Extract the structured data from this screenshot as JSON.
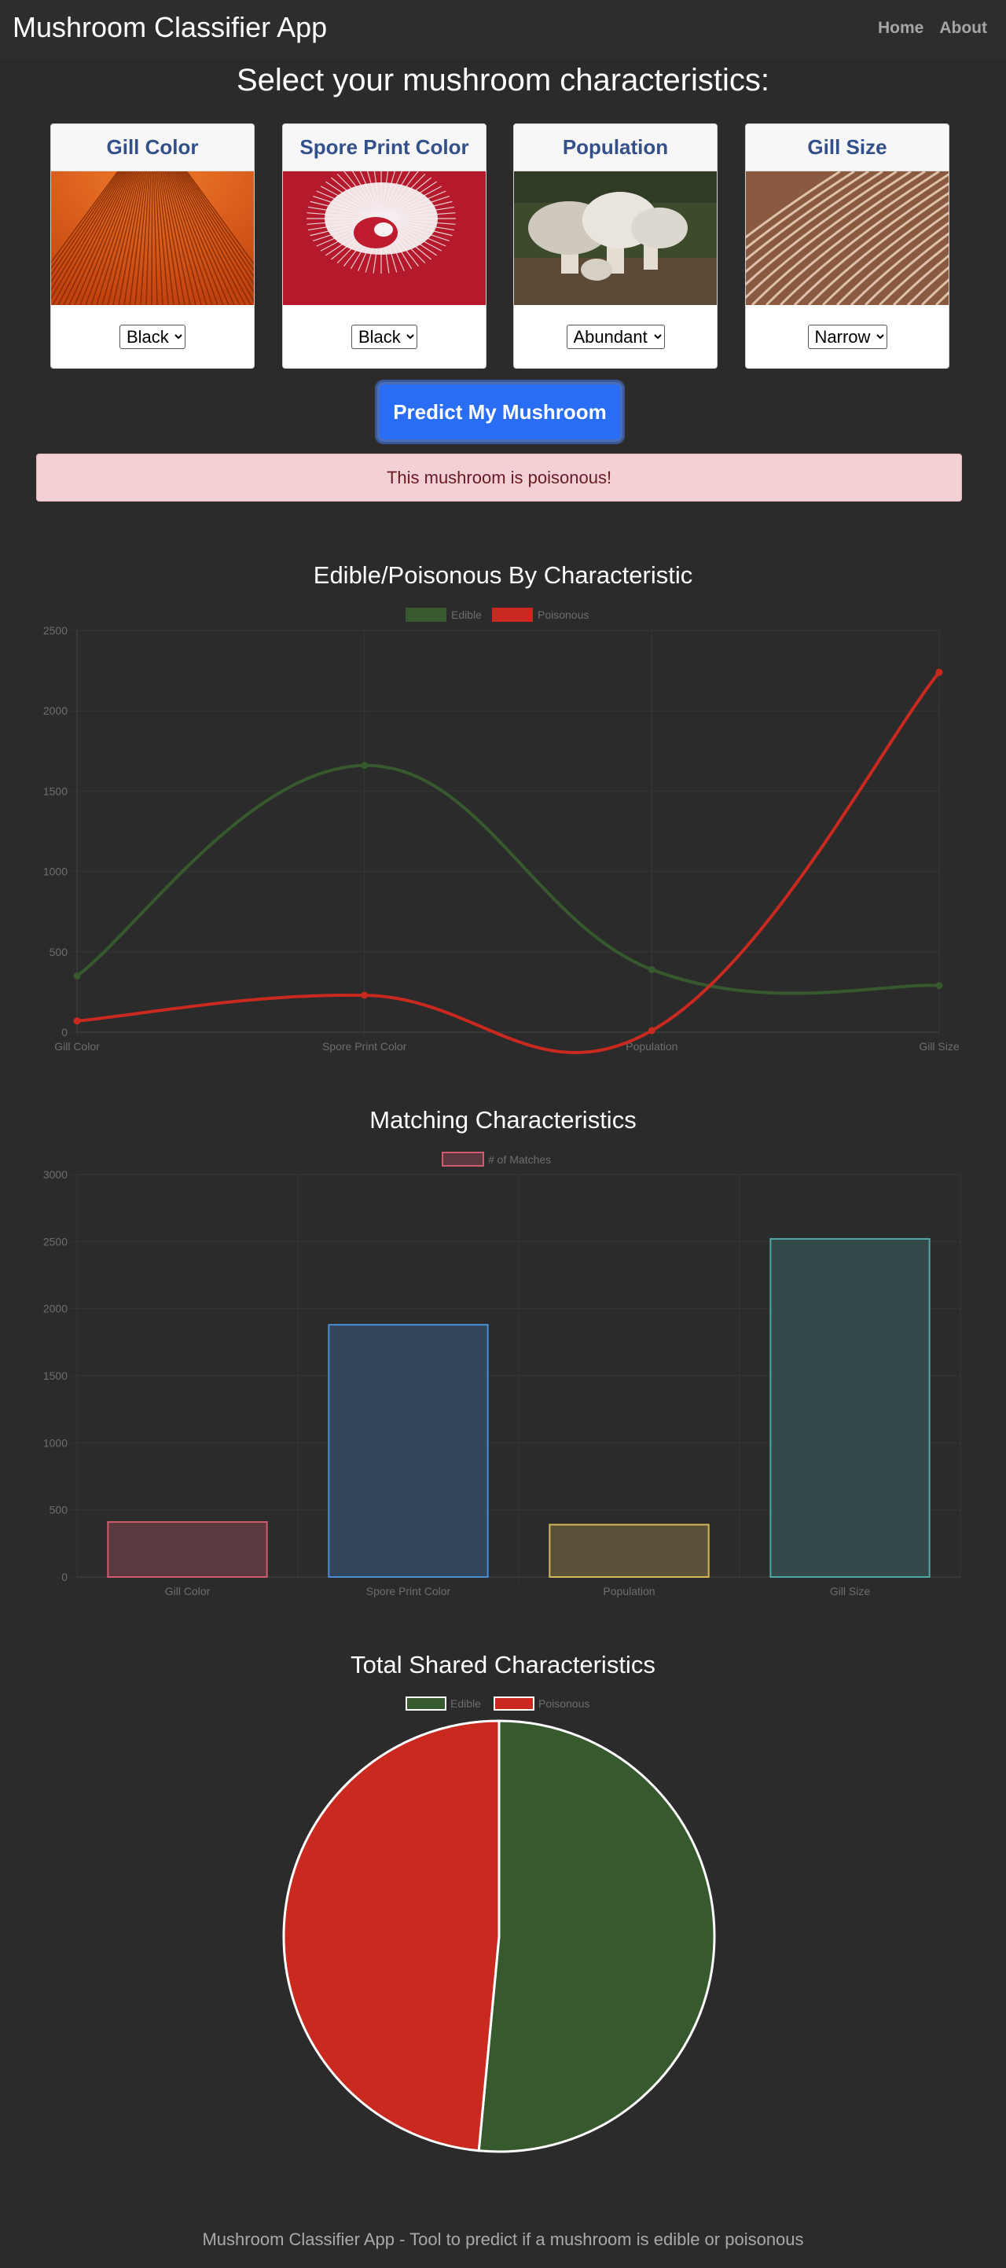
{
  "app": {
    "title": "Mushroom Classifier App"
  },
  "nav": [
    {
      "label": "Home"
    },
    {
      "label": "About"
    }
  ],
  "heading": "Select your mushroom characteristics:",
  "cards": [
    {
      "title": "Gill Color",
      "selected": "Black",
      "image": "orange-gills-photo"
    },
    {
      "title": "Spore Print Color",
      "selected": "Black",
      "image": "red-white-spore-print-photo"
    },
    {
      "title": "Population",
      "selected": "Abundant",
      "image": "mushroom-cluster-photo"
    },
    {
      "title": "Gill Size",
      "selected": "Narrow",
      "image": "brown-gills-photo"
    }
  ],
  "predict_button": "Predict My Mushroom",
  "result": "This mushroom is poisonous!",
  "colors": {
    "edible": "#365a2e",
    "poisonous": "#c9291e",
    "background": "#2b2b2b",
    "button": "#2a6df5"
  },
  "chart_data": [
    {
      "type": "line",
      "title": "Edible/Poisonous By Characteristic",
      "categories": [
        "Gill Color",
        "Spore Print Color",
        "Population",
        "Gill Size"
      ],
      "series": [
        {
          "name": "Edible",
          "values": [
            350,
            1660,
            390,
            290
          ],
          "color": "#365a2e"
        },
        {
          "name": "Poisonous",
          "values": [
            70,
            230,
            10,
            2240
          ],
          "color": "#c9291e"
        }
      ],
      "ylim": [
        0,
        2500
      ],
      "yticks": [
        0,
        500,
        1000,
        1500,
        2000,
        2500
      ],
      "legend": "top-center",
      "grid": true
    },
    {
      "type": "bar",
      "title": "Matching Characteristics",
      "categories": [
        "Gill Color",
        "Spore Print Color",
        "Population",
        "Gill Size"
      ],
      "series": [
        {
          "name": "# of Matches",
          "values": [
            410,
            1880,
            390,
            2520
          ]
        }
      ],
      "bar_colors": [
        {
          "fill": "#5a3a3f",
          "stroke": "#d05a6e"
        },
        {
          "fill": "#34465b",
          "stroke": "#4a8fd6"
        },
        {
          "fill": "#5a5238",
          "stroke": "#d4b85a"
        },
        {
          "fill": "#344a4a",
          "stroke": "#4fa7a7"
        }
      ],
      "ylim": [
        0,
        3000
      ],
      "yticks": [
        0,
        500,
        1000,
        1500,
        2000,
        2500,
        3000
      ],
      "legend": "top-center",
      "grid": true
    },
    {
      "type": "pie",
      "title": "Total Shared Characteristics",
      "labels": [
        "Edible",
        "Poisonous"
      ],
      "values": [
        51.5,
        48.5
      ],
      "colors": [
        "#365a2e",
        "#c9291e"
      ],
      "legend": "top-center"
    }
  ],
  "footer": "Mushroom Classifier App - Tool to predict if a mushroom is edible or poisonous"
}
